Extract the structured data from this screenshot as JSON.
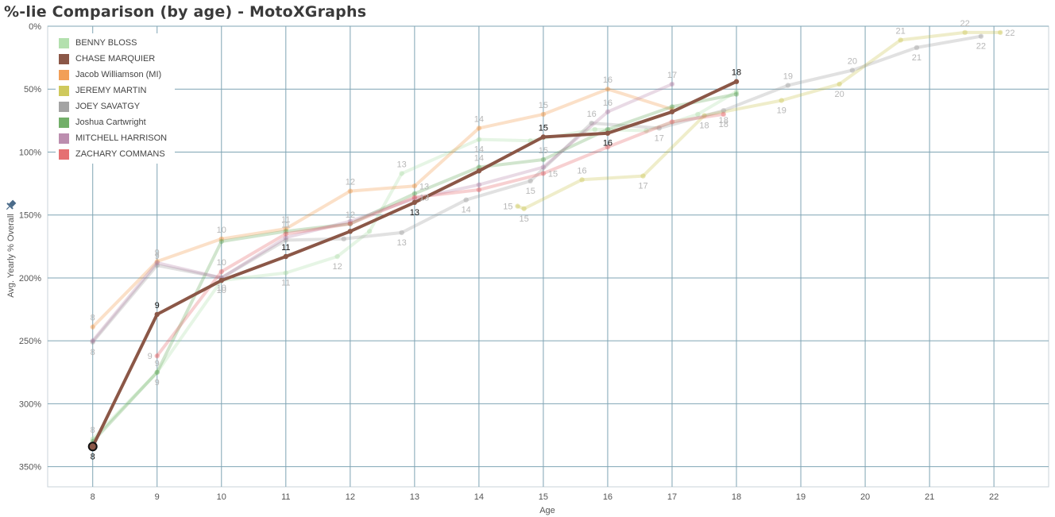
{
  "title": "%-lie Comparison (by age) - MotoXGraphs",
  "pin_icon": "pin-icon",
  "chart_data": {
    "type": "line",
    "xlabel": "Age",
    "ylabel": "Avg. Yearly % Overall",
    "x_ticks": [
      "8",
      "9",
      "10",
      "11",
      "12",
      "13",
      "14",
      "15",
      "16",
      "17",
      "18",
      "19",
      "20",
      "21",
      "22"
    ],
    "y_ticks": [
      "0%",
      "50%",
      "100%",
      "150%",
      "200%",
      "250%",
      "300%",
      "350%"
    ],
    "xlim": [
      7.3,
      22.85
    ],
    "ylim": [
      0,
      366
    ],
    "y_inverted": true,
    "grid": true,
    "legend_position": "top-left",
    "highlighted_series": "CHASE MARQUIER",
    "series": [
      {
        "name": "BENNY BLOSS",
        "color": "#a6dba0",
        "points": [
          [
            8,
            328
          ],
          [
            9,
            275
          ],
          [
            10,
            202
          ],
          [
            11,
            196
          ],
          [
            11.8,
            183
          ],
          [
            12.3,
            163
          ],
          [
            12.8,
            117
          ],
          [
            14,
            90
          ],
          [
            14.8,
            91
          ],
          [
            15.8,
            82
          ],
          [
            16.6,
            83
          ],
          [
            17.4,
            70
          ],
          [
            18,
            52
          ]
        ],
        "labels": [
          {
            "t": "8",
            "a": "above"
          },
          {
            "t": "9",
            "a": "above"
          },
          {
            "t": "10",
            "a": "below"
          },
          {
            "t": "11",
            "a": "below"
          },
          {
            "t": "12",
            "a": "below"
          },
          {
            "t": "",
            "a": "above"
          },
          {
            "t": "13",
            "a": "above"
          },
          {
            "t": "14",
            "a": "below"
          },
          {
            "t": "",
            "a": "above"
          },
          {
            "t": "",
            "a": "above"
          },
          {
            "t": "",
            "a": "above"
          },
          {
            "t": "",
            "a": "above"
          },
          {
            "t": "",
            "a": "above"
          }
        ]
      },
      {
        "name": "CHASE MARQUIER",
        "color": "#8b5747",
        "points": [
          [
            8,
            334
          ],
          [
            9,
            229
          ],
          [
            10,
            202
          ],
          [
            11,
            183
          ],
          [
            12,
            163
          ],
          [
            13,
            140
          ],
          [
            14,
            115
          ],
          [
            15,
            88
          ],
          [
            16,
            85
          ],
          [
            17,
            68
          ],
          [
            18,
            44
          ]
        ],
        "labels": [
          {
            "t": "8",
            "a": "below"
          },
          {
            "t": "9",
            "a": "above"
          },
          {
            "t": "",
            "a": "above"
          },
          {
            "t": "11",
            "a": "above"
          },
          {
            "t": "",
            "a": "above"
          },
          {
            "t": "13",
            "a": "below"
          },
          {
            "t": "",
            "a": "above"
          },
          {
            "t": "15",
            "a": "above"
          },
          {
            "t": "16",
            "a": "below"
          },
          {
            "t": "",
            "a": "above"
          },
          {
            "t": "18",
            "a": "above"
          }
        ]
      },
      {
        "name": "Jacob Williamson (MI)",
        "color": "#f08e39",
        "points": [
          [
            8,
            239
          ],
          [
            9,
            187
          ],
          [
            10,
            169
          ],
          [
            11,
            161
          ],
          [
            12,
            131
          ],
          [
            13,
            127
          ],
          [
            14,
            81
          ],
          [
            15,
            70
          ],
          [
            16,
            50
          ],
          [
            17,
            66
          ]
        ],
        "labels": [
          {
            "t": "8",
            "a": "above"
          },
          {
            "t": "9",
            "a": "above"
          },
          {
            "t": "10",
            "a": "above"
          },
          {
            "t": "11",
            "a": "above"
          },
          {
            "t": "12",
            "a": "above"
          },
          {
            "t": "13",
            "a": "right"
          },
          {
            "t": "14",
            "a": "above"
          },
          {
            "t": "15",
            "a": "above"
          },
          {
            "t": "16",
            "a": "above"
          },
          {
            "t": "",
            "a": "above"
          }
        ]
      },
      {
        "name": "JEREMY MARTIN",
        "color": "#c7c041",
        "points": [
          [
            14.6,
            143
          ],
          [
            14.7,
            145
          ],
          [
            15.6,
            122
          ],
          [
            16.55,
            119
          ],
          [
            17.5,
            71
          ],
          [
            18.7,
            59
          ],
          [
            19.6,
            46
          ],
          [
            20.55,
            11
          ],
          [
            21.55,
            5
          ],
          [
            22.1,
            5
          ]
        ],
        "labels": [
          {
            "t": "15",
            "a": "left"
          },
          {
            "t": "15",
            "a": "below"
          },
          {
            "t": "16",
            "a": "above"
          },
          {
            "t": "17",
            "a": "below"
          },
          {
            "t": "18",
            "a": "below"
          },
          {
            "t": "19",
            "a": "below"
          },
          {
            "t": "20",
            "a": "below"
          },
          {
            "t": "21",
            "a": "above"
          },
          {
            "t": "22",
            "a": "above"
          },
          {
            "t": "22",
            "a": "right"
          }
        ]
      },
      {
        "name": "JOEY SAVATGY",
        "color": "#939393",
        "points": [
          [
            8,
            251
          ],
          [
            9,
            190
          ],
          [
            10,
            200
          ],
          [
            11,
            170
          ],
          [
            11.9,
            169
          ],
          [
            12.8,
            164
          ],
          [
            13.8,
            138
          ],
          [
            14.8,
            123
          ],
          [
            15.75,
            77
          ],
          [
            16.8,
            81
          ],
          [
            17.8,
            67
          ],
          [
            18.8,
            47
          ],
          [
            19.8,
            35
          ],
          [
            20.8,
            17
          ],
          [
            21.8,
            8
          ]
        ],
        "labels": [
          {
            "t": "8",
            "a": "below"
          },
          {
            "t": "9",
            "a": "above"
          },
          {
            "t": "10",
            "a": "below"
          },
          {
            "t": "",
            "a": "above"
          },
          {
            "t": "",
            "a": "above"
          },
          {
            "t": "13",
            "a": "below"
          },
          {
            "t": "14",
            "a": "below"
          },
          {
            "t": "15",
            "a": "below"
          },
          {
            "t": "16",
            "a": "above"
          },
          {
            "t": "17",
            "a": "below"
          },
          {
            "t": "18",
            "a": "below"
          },
          {
            "t": "19",
            "a": "above"
          },
          {
            "t": "20",
            "a": "above"
          },
          {
            "t": "21",
            "a": "below"
          },
          {
            "t": "22",
            "a": "below"
          }
        ]
      },
      {
        "name": "Joshua Cartwright",
        "color": "#59a14f",
        "points": [
          [
            8,
            330
          ],
          [
            9,
            275
          ],
          [
            10,
            171
          ],
          [
            11,
            163
          ],
          [
            12,
            157
          ],
          [
            13,
            133
          ],
          [
            14,
            112
          ],
          [
            15,
            106
          ],
          [
            16,
            82
          ],
          [
            17,
            64
          ],
          [
            18,
            54
          ]
        ],
        "labels": [
          {
            "t": "",
            "a": "above"
          },
          {
            "t": "9",
            "a": "below"
          },
          {
            "t": "",
            "a": "above"
          },
          {
            "t": "",
            "a": "above"
          },
          {
            "t": "12",
            "a": "above"
          },
          {
            "t": "",
            "a": "above"
          },
          {
            "t": "14",
            "a": "above"
          },
          {
            "t": "15",
            "a": "above"
          },
          {
            "t": "",
            "a": "above"
          },
          {
            "t": "",
            "a": "above"
          },
          {
            "t": "",
            "a": "above"
          }
        ]
      },
      {
        "name": "MITCHELL HARRISON",
        "color": "#b07aa1",
        "points": [
          [
            8,
            250
          ],
          [
            9,
            188
          ],
          [
            10,
            200
          ],
          [
            11,
            168
          ],
          [
            12,
            155
          ],
          [
            13,
            137
          ],
          [
            14,
            126
          ],
          [
            15,
            112
          ],
          [
            16,
            68
          ],
          [
            17,
            46
          ]
        ],
        "labels": [
          {
            "t": "",
            "a": "above"
          },
          {
            "t": "",
            "a": "above"
          },
          {
            "t": "",
            "a": "above"
          },
          {
            "t": "",
            "a": "above"
          },
          {
            "t": "",
            "a": "above"
          },
          {
            "t": "",
            "a": "above"
          },
          {
            "t": "",
            "a": "above"
          },
          {
            "t": "",
            "a": "above"
          },
          {
            "t": "16",
            "a": "above"
          },
          {
            "t": "17",
            "a": "above"
          }
        ]
      },
      {
        "name": "ZACHARY COMMANS",
        "color": "#e15759",
        "points": [
          [
            9,
            262
          ],
          [
            10,
            195
          ],
          [
            11,
            165
          ],
          [
            12,
            157
          ],
          [
            13,
            136
          ],
          [
            14,
            130
          ],
          [
            15,
            117
          ],
          [
            16,
            96
          ],
          [
            17,
            76
          ],
          [
            17.8,
            70
          ]
        ],
        "labels": [
          {
            "t": "9",
            "a": "left"
          },
          {
            "t": "10",
            "a": "above"
          },
          {
            "t": "11",
            "a": "above"
          },
          {
            "t": "",
            "a": "above"
          },
          {
            "t": "13",
            "a": "right"
          },
          {
            "t": "",
            "a": "above"
          },
          {
            "t": "15",
            "a": "right"
          },
          {
            "t": "",
            "a": "above"
          },
          {
            "t": "",
            "a": "above"
          },
          {
            "t": "18",
            "a": "below"
          }
        ]
      }
    ]
  }
}
